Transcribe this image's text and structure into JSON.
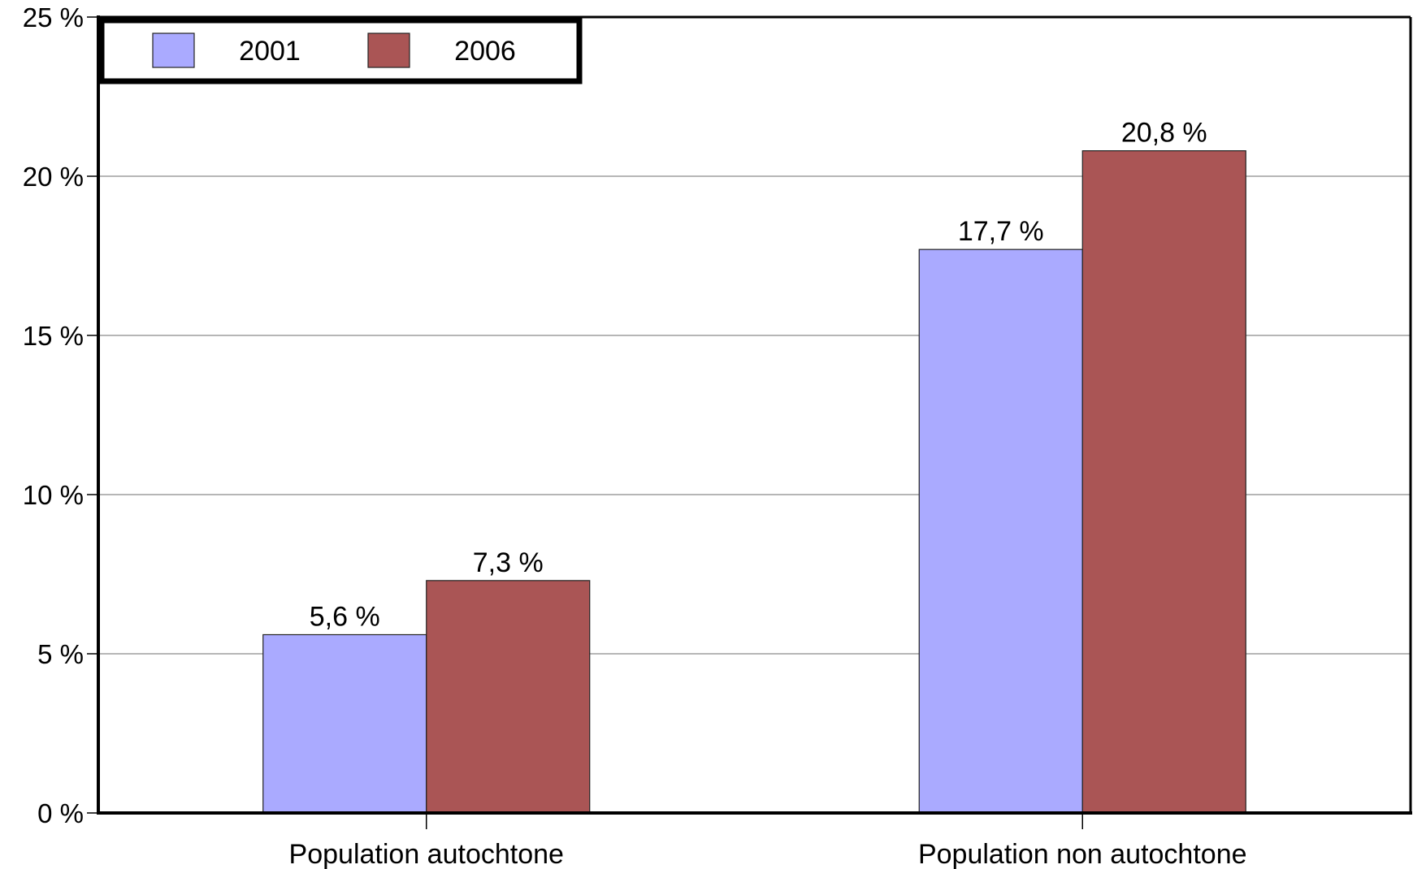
{
  "chart_data": {
    "type": "bar",
    "title": "",
    "xlabel": "",
    "ylabel": "",
    "categories": [
      "Population autochtone",
      "Population non autochtone"
    ],
    "series": [
      {
        "name": "2001",
        "values": [
          5.6,
          17.7
        ],
        "labels": [
          "5,6 %",
          "17,7 %"
        ],
        "color": "#aaaaff"
      },
      {
        "name": "2006",
        "values": [
          7.3,
          20.8
        ],
        "labels": [
          "7,3 %",
          "20,8 %"
        ],
        "color": "#aa5555"
      }
    ],
    "ylim": [
      0,
      25
    ],
    "yticks": [
      0,
      5,
      10,
      15,
      20,
      25
    ],
    "ytick_labels": [
      "0 %",
      "5 %",
      "10 %",
      "15 %",
      "20 %",
      "25 %"
    ],
    "grid": true,
    "legend": "top-left"
  }
}
